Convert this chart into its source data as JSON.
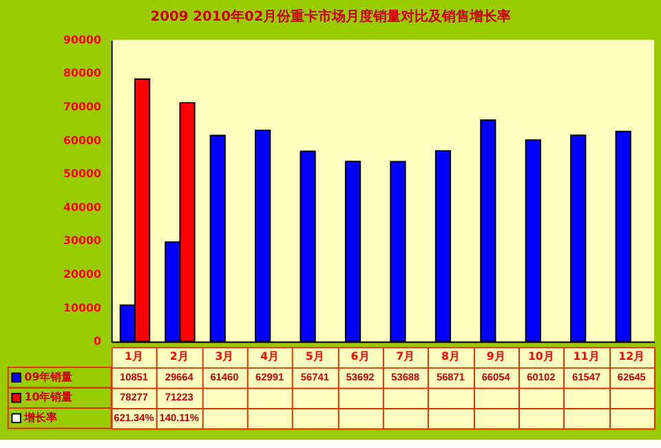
{
  "chart_data": {
    "type": "bar",
    "title": "2009 2010年02月份重卡市场月度销量对比及销售增长率",
    "categories": [
      "1月",
      "2月",
      "3月",
      "4月",
      "5月",
      "6月",
      "7月",
      "8月",
      "9月",
      "10月",
      "11月",
      "12月"
    ],
    "series": [
      {
        "name": "09年销量",
        "color": "#0000ff",
        "values": [
          10851,
          29664,
          61460,
          62991,
          56741,
          53692,
          53688,
          56871,
          66054,
          60102,
          61547,
          62645
        ]
      },
      {
        "name": "10年销量",
        "color": "#ff0000",
        "values": [
          78277,
          71223,
          null,
          null,
          null,
          null,
          null,
          null,
          null,
          null,
          null,
          null
        ]
      }
    ],
    "annotations": [
      "增长率",
      "621.34%",
      "140.11%"
    ],
    "ylim": [
      0,
      90000
    ],
    "yticks": [
      0,
      10000,
      20000,
      30000,
      40000,
      50000,
      60000,
      70000,
      80000,
      90000
    ],
    "grid": false,
    "legend": "bottom left",
    "data_labels": true
  }
}
